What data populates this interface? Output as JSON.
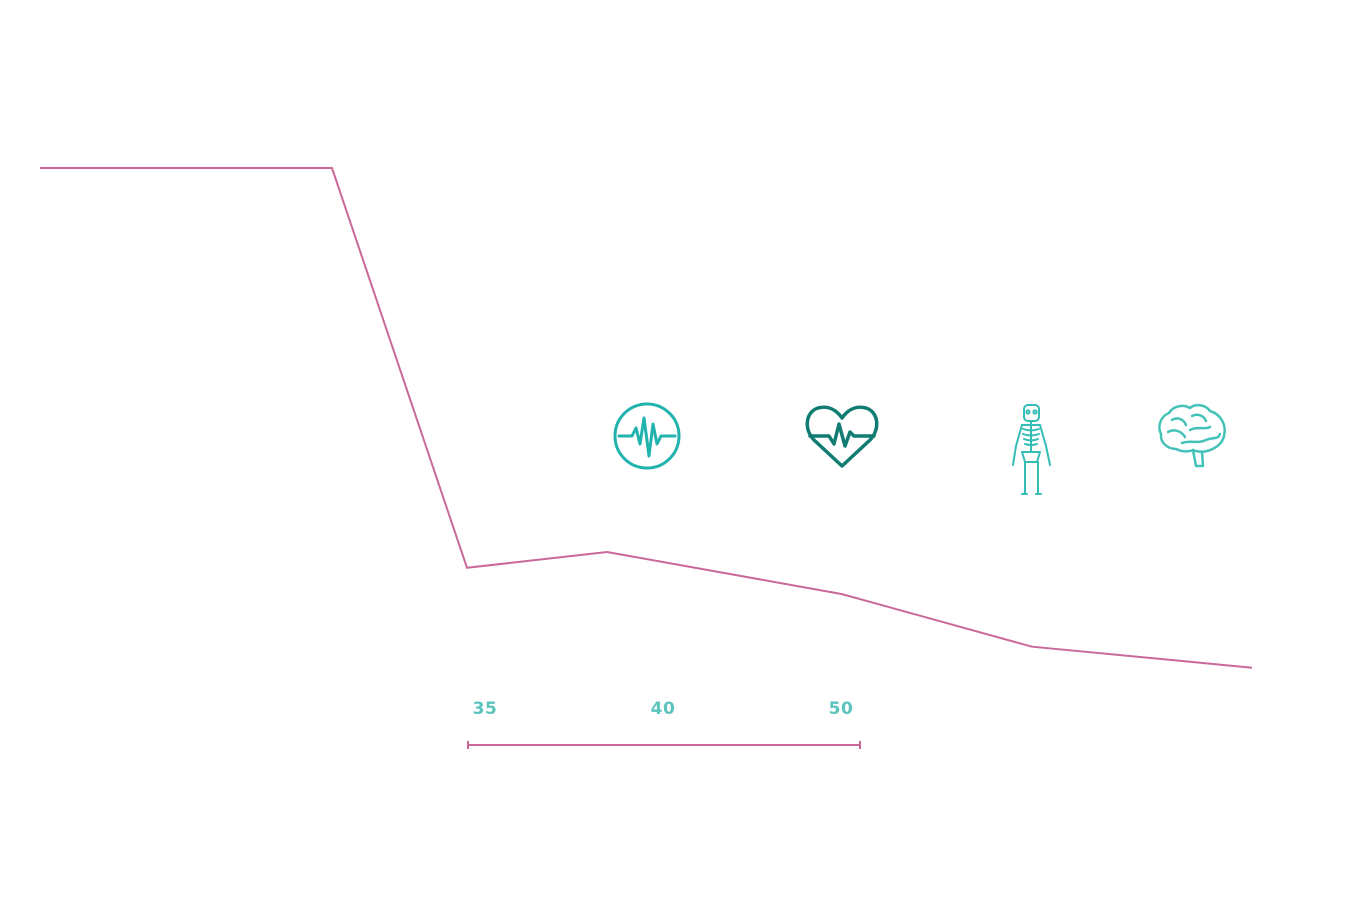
{
  "chart_data": {
    "type": "line",
    "title": "",
    "xlabel": "",
    "ylabel": "",
    "grid": false,
    "legend": "none",
    "line_color": "#c9699a",
    "label_color": "#5cc4bd",
    "series": [
      {
        "points": [
          {
            "x": 15,
            "y": 100
          },
          {
            "x": 30,
            "y": 100
          },
          {
            "x": 35,
            "y": 24
          },
          {
            "x": 40,
            "y": 27
          },
          {
            "x": 50,
            "y": 19
          },
          {
            "x": 60,
            "y": 9
          },
          {
            "x": 70,
            "y": 5
          }
        ]
      }
    ],
    "x_tick_labels": [
      "35",
      "40",
      "50"
    ],
    "icons": [
      {
        "name": "pulse-circle-icon",
        "color": "#22b3ae"
      },
      {
        "name": "heart-pulse-icon",
        "color": "#117c72"
      },
      {
        "name": "skeleton-icon",
        "color": "#33bdb5"
      },
      {
        "name": "brain-icon",
        "color": "#44c2b8"
      }
    ]
  }
}
